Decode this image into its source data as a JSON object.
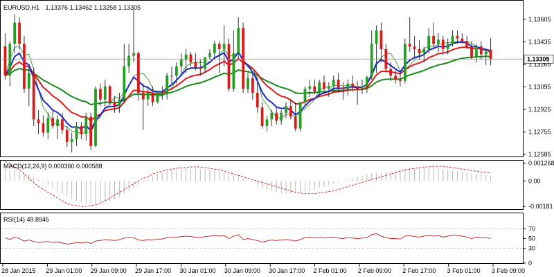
{
  "header": {
    "symbol": "EURUSD,H1",
    "ohlc": "1.13376 1.13462 1.13258 1.13305"
  },
  "colors": {
    "bull": "#22a022",
    "bear": "#e01818",
    "wick": "#333333",
    "ma_fast": "#1a28c8",
    "ma_mid": "#e01818",
    "ma_slow": "#1a8a1a",
    "ma_thin": "#1a8a1a",
    "macd_hist": "#b8b8b8",
    "macd_signal": "#c81818",
    "rsi": "#c81818",
    "current_price": "#888888"
  },
  "chart_data": [
    {
      "type": "candlestick",
      "title": "EURUSD,H1",
      "price_axis": {
        "ticks": [
          "1.13605",
          "1.13435",
          "1.13265",
          "1.13095",
          "1.12925",
          "1.12755",
          "1.12585"
        ],
        "ylim": [
          1.1257,
          1.1374
        ]
      },
      "current_price": "1.13305",
      "time_axis": [
        "28 Jan 2015",
        "29 Jan 01:00",
        "29 Jan 09:00",
        "29 Jan 17:00",
        "30 Jan 01:00",
        "30 Jan 09:00",
        "30 Jan 17:00",
        "2 Feb 01:00",
        "2 Feb 09:00",
        "2 Feb 17:00",
        "3 Feb 01:00",
        "3 Feb 09:00"
      ],
      "candles": [
        [
          1.134,
          1.135,
          1.1315,
          1.1318
        ],
        [
          1.1318,
          1.1344,
          1.131,
          1.1342
        ],
        [
          1.1342,
          1.1364,
          1.1335,
          1.1358
        ],
        [
          1.1358,
          1.1362,
          1.1338,
          1.1342
        ],
        [
          1.1342,
          1.1348,
          1.1305,
          1.1308
        ],
        [
          1.1308,
          1.1325,
          1.1295,
          1.132
        ],
        [
          1.132,
          1.1324,
          1.128,
          1.1285
        ],
        [
          1.1285,
          1.1292,
          1.1274,
          1.1282
        ],
        [
          1.1282,
          1.1288,
          1.1272,
          1.1275
        ],
        [
          1.1275,
          1.129,
          1.127,
          1.1286
        ],
        [
          1.1286,
          1.1292,
          1.1278,
          1.128
        ],
        [
          1.128,
          1.1288,
          1.127,
          1.1285
        ],
        [
          1.1285,
          1.129,
          1.1274,
          1.1277
        ],
        [
          1.1277,
          1.128,
          1.1264,
          1.1268
        ],
        [
          1.1268,
          1.1275,
          1.126,
          1.127
        ],
        [
          1.127,
          1.1283,
          1.1265,
          1.128
        ],
        [
          1.128,
          1.1283,
          1.127,
          1.1274
        ],
        [
          1.1274,
          1.129,
          1.1269,
          1.1287
        ],
        [
          1.1287,
          1.129,
          1.1262,
          1.1265
        ],
        [
          1.1265,
          1.131,
          1.1264,
          1.1308
        ],
        [
          1.1308,
          1.1312,
          1.1295,
          1.13
        ],
        [
          1.13,
          1.1315,
          1.1295,
          1.131
        ],
        [
          1.131,
          1.1311,
          1.1296,
          1.1298
        ],
        [
          1.1298,
          1.1302,
          1.129,
          1.1295
        ],
        [
          1.1295,
          1.1305,
          1.129,
          1.13
        ],
        [
          1.13,
          1.1342,
          1.1298,
          1.1325
        ],
        [
          1.1325,
          1.1342,
          1.132,
          1.1333
        ],
        [
          1.1333,
          1.1368,
          1.1328,
          1.1335
        ],
        [
          1.1335,
          1.1336,
          1.1299,
          1.1305
        ],
        [
          1.1305,
          1.1312,
          1.1277,
          1.13
        ],
        [
          1.13,
          1.131,
          1.1295,
          1.1305
        ],
        [
          1.1305,
          1.131,
          1.1295,
          1.1298
        ],
        [
          1.1298,
          1.1306,
          1.1297,
          1.1305
        ],
        [
          1.1305,
          1.131,
          1.13,
          1.1305
        ],
        [
          1.1305,
          1.132,
          1.13,
          1.1318
        ],
        [
          1.1318,
          1.1325,
          1.1312,
          1.1318
        ],
        [
          1.1318,
          1.1328,
          1.1312,
          1.1325
        ],
        [
          1.1325,
          1.1335,
          1.132,
          1.133
        ],
        [
          1.133,
          1.1338,
          1.132,
          1.1334
        ],
        [
          1.1334,
          1.1336,
          1.1325,
          1.1328
        ],
        [
          1.1328,
          1.1335,
          1.1322,
          1.1324
        ],
        [
          1.1324,
          1.133,
          1.1318,
          1.1323
        ],
        [
          1.1323,
          1.1332,
          1.132,
          1.1332
        ],
        [
          1.1332,
          1.1338,
          1.133,
          1.1335
        ],
        [
          1.1335,
          1.1344,
          1.133,
          1.1342
        ],
        [
          1.1342,
          1.1344,
          1.132,
          1.1338
        ],
        [
          1.1338,
          1.1356,
          1.1325,
          1.1342
        ],
        [
          1.1342,
          1.1346,
          1.1306,
          1.1308
        ],
        [
          1.1308,
          1.1352,
          1.1306,
          1.1335
        ],
        [
          1.1335,
          1.1362,
          1.133,
          1.1354
        ],
        [
          1.1354,
          1.1358,
          1.1305,
          1.1308
        ],
        [
          1.1308,
          1.132,
          1.1305,
          1.1316
        ],
        [
          1.1316,
          1.132,
          1.13,
          1.1305
        ],
        [
          1.1305,
          1.1317,
          1.129,
          1.1294
        ],
        [
          1.1294,
          1.1298,
          1.1278,
          1.128
        ],
        [
          1.128,
          1.1288,
          1.1276,
          1.1285
        ],
        [
          1.1285,
          1.1292,
          1.128,
          1.129
        ],
        [
          1.129,
          1.1295,
          1.1281,
          1.1284
        ],
        [
          1.1284,
          1.1292,
          1.1281,
          1.129
        ],
        [
          1.129,
          1.1298,
          1.1286,
          1.1295
        ],
        [
          1.1295,
          1.13,
          1.1285,
          1.1287
        ],
        [
          1.1287,
          1.1298,
          1.1276,
          1.1278
        ],
        [
          1.1278,
          1.1298,
          1.1276,
          1.1298
        ],
        [
          1.1298,
          1.131,
          1.1295,
          1.1308
        ],
        [
          1.1308,
          1.1315,
          1.1302,
          1.131
        ],
        [
          1.131,
          1.1315,
          1.1304,
          1.1306
        ],
        [
          1.1306,
          1.1315,
          1.1302,
          1.1313
        ],
        [
          1.1313,
          1.1318,
          1.1305,
          1.1308
        ],
        [
          1.1308,
          1.1313,
          1.1302,
          1.131
        ],
        [
          1.131,
          1.1318,
          1.1305,
          1.1315
        ],
        [
          1.1315,
          1.132,
          1.1305,
          1.1309
        ],
        [
          1.1309,
          1.1313,
          1.13,
          1.1308
        ],
        [
          1.1308,
          1.1315,
          1.1303,
          1.1312
        ],
        [
          1.1312,
          1.1318,
          1.1306,
          1.131
        ],
        [
          1.131,
          1.1314,
          1.1296,
          1.1308
        ],
        [
          1.1308,
          1.1315,
          1.1304,
          1.131
        ],
        [
          1.131,
          1.1318,
          1.1305,
          1.1317
        ],
        [
          1.1317,
          1.1352,
          1.1315,
          1.1342
        ],
        [
          1.1342,
          1.1356,
          1.132,
          1.1352
        ],
        [
          1.1352,
          1.1358,
          1.1328,
          1.1338
        ],
        [
          1.1338,
          1.1342,
          1.132,
          1.1323
        ],
        [
          1.1323,
          1.1328,
          1.1314,
          1.1318
        ],
        [
          1.1318,
          1.1322,
          1.1312,
          1.1315
        ],
        [
          1.1315,
          1.132,
          1.131,
          1.1314
        ],
        [
          1.1314,
          1.1346,
          1.1312,
          1.1342
        ],
        [
          1.1342,
          1.1362,
          1.1336,
          1.134
        ],
        [
          1.134,
          1.1348,
          1.1332,
          1.1338
        ],
        [
          1.1338,
          1.1345,
          1.133,
          1.1335
        ],
        [
          1.1335,
          1.134,
          1.1328,
          1.1338
        ],
        [
          1.1338,
          1.1354,
          1.1335,
          1.1348
        ],
        [
          1.1348,
          1.1358,
          1.1338,
          1.1342
        ],
        [
          1.1342,
          1.135,
          1.1336,
          1.1345
        ],
        [
          1.1345,
          1.1348,
          1.1334,
          1.1338
        ],
        [
          1.1338,
          1.1346,
          1.1334,
          1.1342
        ],
        [
          1.1342,
          1.1352,
          1.134,
          1.1348
        ],
        [
          1.1348,
          1.1352,
          1.1342,
          1.1346
        ],
        [
          1.1346,
          1.135,
          1.1342,
          1.1344
        ],
        [
          1.1344,
          1.1348,
          1.1338,
          1.134
        ],
        [
          1.134,
          1.1344,
          1.133,
          1.1332
        ],
        [
          1.1332,
          1.1342,
          1.1328,
          1.134
        ],
        [
          1.134,
          1.1344,
          1.133,
          1.1334
        ],
        [
          1.1334,
          1.1338,
          1.1326,
          1.1336
        ],
        [
          1.13376,
          1.13462,
          1.13258,
          1.13305
        ]
      ]
    },
    {
      "type": "line",
      "title": "MACD(12,26,9) 0.000360 0.000588",
      "y_ticks": [
        "0.001268",
        "0.00",
        "-0.00181"
      ],
      "ylim": [
        -0.00195,
        0.0014
      ],
      "series": [
        {
          "name": "histogram",
          "values": [
            0.0009,
            0.00085,
            0.0008,
            0.0007,
            0.0006,
            0.0005,
            0.0003,
            0.0001,
            -0.0001,
            -0.0003,
            -0.0005,
            -0.0007,
            -0.0009,
            -0.0011,
            -0.00125,
            -0.0014,
            -0.0015,
            -0.0016,
            -0.00165,
            -0.0017,
            -0.0016,
            -0.0015,
            -0.0014,
            -0.0013,
            -0.0011,
            -0.0009,
            -0.0007,
            -0.0005,
            -0.0003,
            -0.0001,
            0.0001,
            0.0003,
            0.0005,
            0.0006,
            0.0007,
            0.0008,
            0.00085,
            0.0009,
            0.0009,
            0.0009,
            0.0009,
            0.00085,
            0.00085,
            0.0008,
            0.00075,
            0.0007,
            0.0006,
            0.0005,
            0.0004,
            0.0003,
            0.0002,
            0.0,
            -0.0001,
            -0.0003,
            -0.0005,
            -0.0006,
            -0.0007,
            -0.0008,
            -0.00085,
            -0.0009,
            -0.0009,
            -0.00085,
            -0.0008,
            -0.00075,
            -0.0007,
            -0.0006,
            -0.0005,
            -0.0004,
            -0.0003,
            -0.0002,
            -0.0001,
            0.0,
            0.0001,
            0.0002,
            0.0003,
            0.0004,
            0.0005,
            0.00055,
            0.0006,
            0.0006,
            0.00065,
            0.0007,
            0.00075,
            0.0008,
            0.00085,
            0.0009,
            0.0009,
            0.0009,
            0.00095,
            0.00095,
            0.00095,
            0.0009,
            0.00085,
            0.0008,
            0.00075,
            0.0007,
            0.00065,
            0.0006,
            0.00055,
            0.0005,
            0.00045,
            0.0004,
            0.00036
          ]
        },
        {
          "name": "signal",
          "values": [
            0.0014,
            0.0012,
            0.001,
            0.0008,
            0.0005,
            0.0002,
            -0.0001,
            -0.0004,
            -0.0006,
            -0.0008,
            -0.001,
            -0.0012,
            -0.0014,
            -0.0016,
            -0.0017,
            -0.00175,
            -0.0018,
            -0.0018,
            -0.00175,
            -0.0017,
            -0.0016,
            -0.0014,
            -0.0012,
            -0.001,
            -0.0008,
            -0.0006,
            -0.0004,
            -0.0002,
            0.0,
            0.0002,
            0.0003,
            0.0005,
            0.0006,
            0.0007,
            0.0008,
            0.00085,
            0.0009,
            0.00095,
            0.00095,
            0.001,
            0.001,
            0.001,
            0.00095,
            0.0009,
            0.00085,
            0.0008,
            0.0007,
            0.0006,
            0.0005,
            0.0004,
            0.0003,
            0.0002,
            0.0001,
            0.0,
            -0.0001,
            -0.0002,
            -0.0003,
            -0.0004,
            -0.0005,
            -0.0006,
            -0.0007,
            -0.0008,
            -0.00085,
            -0.0009,
            -0.0009,
            -0.0009,
            -0.00085,
            -0.0008,
            -0.00075,
            -0.0007,
            -0.0006,
            -0.0005,
            -0.0004,
            -0.0003,
            -0.0002,
            -0.0001,
            0.0,
            0.0001,
            0.0002,
            0.0003,
            0.0004,
            0.0005,
            0.0006,
            0.0007,
            0.0008,
            0.00085,
            0.0009,
            0.00095,
            0.001,
            0.001,
            0.00105,
            0.00105,
            0.00105,
            0.001,
            0.00095,
            0.0009,
            0.00085,
            0.0008,
            0.00075,
            0.0007,
            0.00065,
            0.00062,
            0.00059
          ]
        }
      ]
    },
    {
      "type": "line",
      "title": "RSI(14) 49.8945",
      "y_ticks": [
        "70",
        "50",
        "30",
        "0"
      ],
      "levels": [
        70,
        30
      ],
      "ylim": [
        0,
        100
      ],
      "series": [
        {
          "name": "RSI",
          "values": [
            52,
            48,
            53,
            50,
            45,
            47,
            44,
            42,
            43,
            44,
            42,
            43,
            41,
            39,
            40,
            42,
            41,
            43,
            40,
            45,
            46,
            48,
            47,
            46,
            48,
            51,
            52,
            52,
            47,
            46,
            48,
            47,
            49,
            49,
            52,
            52,
            53,
            54,
            55,
            54,
            53,
            52,
            54,
            55,
            56,
            55,
            56,
            50,
            55,
            58,
            48,
            50,
            48,
            46,
            43,
            45,
            47,
            46,
            47,
            48,
            47,
            45,
            48,
            52,
            53,
            51,
            53,
            51,
            52,
            53,
            51,
            50,
            52,
            51,
            50,
            51,
            52,
            58,
            60,
            55,
            52,
            50,
            50,
            49,
            55,
            56,
            54,
            53,
            55,
            57,
            55,
            56,
            53,
            55,
            57,
            56,
            55,
            53,
            50,
            53,
            51,
            52,
            49.9
          ]
        }
      ]
    }
  ]
}
